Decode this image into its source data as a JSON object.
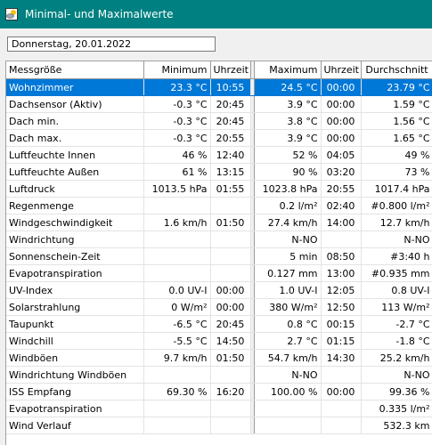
{
  "window": {
    "title": "Minimal- und Maximalwerte",
    "icon": "cloud-sun-icon"
  },
  "date_field": {
    "value": "Donnerstag, 20.01.2022"
  },
  "table": {
    "headers": [
      "Messgröße",
      "Minimum",
      "Uhrzeit",
      "Maximum",
      "Uhrzeit",
      "Durchschnitt"
    ],
    "selected_row": 0,
    "rows": [
      [
        "Wohnzimmer",
        "23.3 °C",
        "10:55",
        "24.5 °C",
        "00:00",
        "23.79 °C"
      ],
      [
        "Dachsensor (Aktiv)",
        "-0.3 °C",
        "20:45",
        "3.9 °C",
        "00:00",
        "1.59 °C"
      ],
      [
        "Dach min.",
        "-0.3 °C",
        "20:45",
        "3.8 °C",
        "00:00",
        "1.56 °C"
      ],
      [
        "Dach max.",
        "-0.3 °C",
        "20:55",
        "3.9 °C",
        "00:00",
        "1.65 °C"
      ],
      [
        "Luftfeuchte Innen",
        "46 %",
        "12:40",
        "52 %",
        "04:05",
        "49 %"
      ],
      [
        "Luftfeuchte Außen",
        "61 %",
        "13:15",
        "90 %",
        "03:20",
        "73 %"
      ],
      [
        "Luftdruck",
        "1013.5 hPa",
        "01:55",
        "1023.8 hPa",
        "20:55",
        "1017.4 hPa"
      ],
      [
        "Regenmenge",
        "",
        "",
        "0.2 l/m²",
        "02:40",
        "#0.800 l/m²"
      ],
      [
        "Windgeschwindigkeit",
        "1.6 km/h",
        "01:50",
        "27.4 km/h",
        "14:00",
        "12.7 km/h"
      ],
      [
        "Windrichtung",
        "",
        "",
        "N-NO",
        "",
        "N-NO"
      ],
      [
        "Sonnenschein-Zeit",
        "",
        "",
        "5 min",
        "08:50",
        "#3:40 h"
      ],
      [
        "Evapotranspiration",
        "",
        "",
        "0.127 mm",
        "13:00",
        "#0.935 mm"
      ],
      [
        "UV-Index",
        "0.0 UV-I",
        "00:00",
        "1.0 UV-I",
        "12:05",
        "0.8 UV-I"
      ],
      [
        "Solarstrahlung",
        "0 W/m²",
        "00:00",
        "380 W/m²",
        "12:50",
        "113 W/m²"
      ],
      [
        "Taupunkt",
        "-6.5 °C",
        "20:45",
        "0.8 °C",
        "00:15",
        "-2.7 °C"
      ],
      [
        "Windchill",
        "-5.5 °C",
        "14:50",
        "2.7 °C",
        "01:15",
        "-1.8 °C"
      ],
      [
        "Windböen",
        "9.7 km/h",
        "01:50",
        "54.7 km/h",
        "14:30",
        "25.2 km/h"
      ],
      [
        "Windrichtung Windböen",
        "",
        "",
        "N-NO",
        "",
        "N-NO"
      ],
      [
        "ISS Empfang",
        "69.30 %",
        "16:20",
        "100.00 %",
        "00:00",
        "99.36 %"
      ],
      [
        "Evapotranspiration",
        "",
        "",
        "",
        "",
        "0.335 l/m²"
      ],
      [
        "Wind Verlauf",
        "",
        "",
        "",
        "",
        "532.3 km"
      ]
    ]
  }
}
